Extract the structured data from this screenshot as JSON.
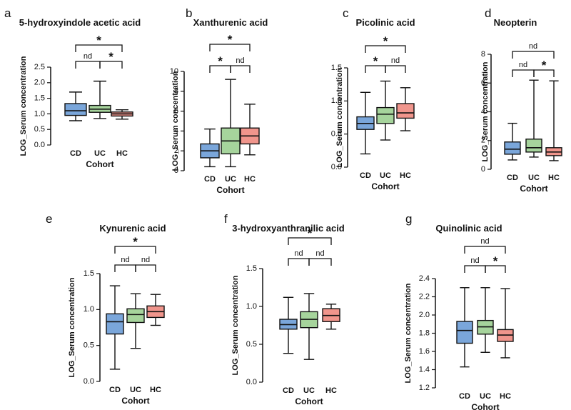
{
  "colors": {
    "CD": "#7aa6da",
    "UC": "#a6d49c",
    "HC": "#f0958c",
    "line": "#111111"
  },
  "chart_data": [
    {
      "label": "a",
      "type": "box",
      "title": "5-hydroxyindole acetic acid",
      "xlabel": "Cohort",
      "ylabel": "LOG_Serum concentration",
      "categories": [
        "CD",
        "UC",
        "HC"
      ],
      "ylim": [
        0,
        2.5
      ],
      "yticks": [
        "0.0",
        "0.5",
        "1.0",
        "1.5",
        "2.0",
        "2.5"
      ],
      "boxes": [
        {
          "group": "CD",
          "min": 0.78,
          "q1": 0.95,
          "median": 1.1,
          "q3": 1.33,
          "max": 1.7
        },
        {
          "group": "UC",
          "min": 0.85,
          "q1": 1.05,
          "median": 1.15,
          "q3": 1.27,
          "max": 2.05
        },
        {
          "group": "HC",
          "min": 0.83,
          "q1": 0.93,
          "median": 1.0,
          "q3": 1.06,
          "max": 1.13
        }
      ],
      "brackets": [
        {
          "from": 0,
          "to": 1,
          "text": "nd",
          "level": 1
        },
        {
          "from": 1,
          "to": 2,
          "text": "*",
          "level": 1
        },
        {
          "from": 0,
          "to": 2,
          "text": "*",
          "level": 2
        }
      ]
    },
    {
      "label": "b",
      "type": "box",
      "title": "Xanthurenic acid",
      "xlabel": "Cohort",
      "ylabel": "LOG_Serum concentration",
      "categories": [
        "CD",
        "UC",
        "HC"
      ],
      "ylim": [
        0,
        10
      ],
      "yticks": [
        "0",
        "2",
        "4",
        "6",
        "8",
        "10"
      ],
      "boxes": [
        {
          "group": "CD",
          "min": 0.4,
          "q1": 1.3,
          "median": 2.0,
          "q3": 2.7,
          "max": 4.2
        },
        {
          "group": "UC",
          "min": 0.4,
          "q1": 1.7,
          "median": 3.0,
          "q3": 4.3,
          "max": 9.2
        },
        {
          "group": "HC",
          "min": 1.6,
          "q1": 2.7,
          "median": 3.5,
          "q3": 4.3,
          "max": 6.7
        }
      ],
      "brackets": [
        {
          "from": 0,
          "to": 1,
          "text": "*",
          "level": 1
        },
        {
          "from": 1,
          "to": 2,
          "text": "nd",
          "level": 1
        },
        {
          "from": 0,
          "to": 2,
          "text": "*",
          "level": 2
        }
      ]
    },
    {
      "label": "c",
      "type": "box",
      "title": "Picolinic acid",
      "xlabel": "Cohort",
      "ylabel": "LOG_Serum concentration",
      "categories": [
        "CD",
        "UC",
        "HC"
      ],
      "ylim": [
        0,
        1.5
      ],
      "yticks": [
        "0.0",
        "0.5",
        "1.0",
        "1.5"
      ],
      "boxes": [
        {
          "group": "CD",
          "min": 0.2,
          "q1": 0.57,
          "median": 0.66,
          "q3": 0.76,
          "max": 1.13
        },
        {
          "group": "UC",
          "min": 0.41,
          "q1": 0.66,
          "median": 0.8,
          "q3": 0.9,
          "max": 1.3
        },
        {
          "group": "HC",
          "min": 0.55,
          "q1": 0.74,
          "median": 0.82,
          "q3": 0.96,
          "max": 1.2
        }
      ],
      "brackets": [
        {
          "from": 0,
          "to": 1,
          "text": "*",
          "level": 1
        },
        {
          "from": 1,
          "to": 2,
          "text": "nd",
          "level": 1
        },
        {
          "from": 0,
          "to": 2,
          "text": "*",
          "level": 2
        }
      ]
    },
    {
      "label": "d",
      "type": "box",
      "title": "Neopterin",
      "xlabel": "Cohort",
      "ylabel": "LOG_Serum concentration",
      "categories": [
        "CD",
        "UC",
        "HC"
      ],
      "ylim": [
        0,
        8
      ],
      "yticks": [
        "0",
        "2",
        "4",
        "6",
        "8"
      ],
      "boxes": [
        {
          "group": "CD",
          "min": 0.65,
          "q1": 1.05,
          "median": 1.4,
          "q3": 1.9,
          "max": 3.2
        },
        {
          "group": "UC",
          "min": 0.85,
          "q1": 1.2,
          "median": 1.5,
          "q3": 2.1,
          "max": 6.2
        },
        {
          "group": "HC",
          "min": 0.6,
          "q1": 0.95,
          "median": 1.2,
          "q3": 1.5,
          "max": 6.15
        }
      ],
      "brackets": [
        {
          "from": 0,
          "to": 1,
          "text": "nd",
          "level": 1
        },
        {
          "from": 1,
          "to": 2,
          "text": "*",
          "level": 1
        },
        {
          "from": 0,
          "to": 2,
          "text": "nd",
          "level": 2
        }
      ]
    },
    {
      "label": "e",
      "type": "box",
      "title": "Kynurenic acid",
      "xlabel": "Cohort",
      "ylabel": "LOG_Serum concentration",
      "categories": [
        "CD",
        "UC",
        "HC"
      ],
      "ylim": [
        0,
        1.5
      ],
      "yticks": [
        "0.0",
        "0.5",
        "1.0",
        "1.5"
      ],
      "boxes": [
        {
          "group": "CD",
          "min": 0.17,
          "q1": 0.66,
          "median": 0.83,
          "q3": 0.94,
          "max": 1.33
        },
        {
          "group": "UC",
          "min": 0.46,
          "q1": 0.82,
          "median": 0.93,
          "q3": 1.01,
          "max": 1.22
        },
        {
          "group": "HC",
          "min": 0.78,
          "q1": 0.89,
          "median": 0.97,
          "q3": 1.05,
          "max": 1.21
        }
      ],
      "brackets": [
        {
          "from": 0,
          "to": 1,
          "text": "nd",
          "level": 1
        },
        {
          "from": 1,
          "to": 2,
          "text": "nd",
          "level": 1
        },
        {
          "from": 0,
          "to": 2,
          "text": "*",
          "level": 2
        }
      ]
    },
    {
      "label": "f",
      "type": "box",
      "title": "3-hydroxyanthranilic acid",
      "xlabel": "Cohort",
      "ylabel": "LOG_Serum concentration",
      "categories": [
        "CD",
        "UC",
        "HC"
      ],
      "ylim": [
        0,
        1.5
      ],
      "yticks": [
        "0.0",
        "0.5",
        "1.0",
        "1.5"
      ],
      "boxes": [
        {
          "group": "CD",
          "min": 0.38,
          "q1": 0.7,
          "median": 0.76,
          "q3": 0.83,
          "max": 1.12
        },
        {
          "group": "UC",
          "min": 0.3,
          "q1": 0.72,
          "median": 0.83,
          "q3": 0.93,
          "max": 1.17
        },
        {
          "group": "HC",
          "min": 0.7,
          "q1": 0.8,
          "median": 0.88,
          "q3": 0.97,
          "max": 1.03
        }
      ],
      "brackets": [
        {
          "from": 0,
          "to": 1,
          "text": "nd",
          "level": 1
        },
        {
          "from": 1,
          "to": 2,
          "text": "nd",
          "level": 1
        },
        {
          "from": 0,
          "to": 2,
          "text": "*",
          "level": 2
        }
      ]
    },
    {
      "label": "g",
      "type": "box",
      "title": "Quinolinic acid",
      "xlabel": "Cohort",
      "ylabel": "LOG_Serum concentration",
      "categories": [
        "CD",
        "UC",
        "HC"
      ],
      "ylim": [
        1.2,
        2.4
      ],
      "yticks": [
        "1.2",
        "1.4",
        "1.6",
        "1.8",
        "2.0",
        "2.2",
        "2.4"
      ],
      "boxes": [
        {
          "group": "CD",
          "min": 1.43,
          "q1": 1.69,
          "median": 1.83,
          "q3": 1.93,
          "max": 2.3
        },
        {
          "group": "UC",
          "min": 1.59,
          "q1": 1.79,
          "median": 1.87,
          "q3": 1.94,
          "max": 2.3
        },
        {
          "group": "HC",
          "min": 1.53,
          "q1": 1.71,
          "median": 1.78,
          "q3": 1.84,
          "max": 2.29
        }
      ],
      "brackets": [
        {
          "from": 0,
          "to": 1,
          "text": "nd",
          "level": 1
        },
        {
          "from": 1,
          "to": 2,
          "text": "*",
          "level": 1
        },
        {
          "from": 0,
          "to": 2,
          "text": "nd",
          "level": 2
        }
      ]
    }
  ]
}
